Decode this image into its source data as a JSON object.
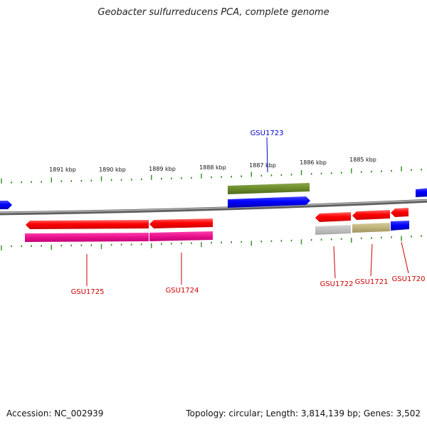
{
  "title": "Geobacter sulfurreducens PCA, complete genome",
  "footer": {
    "accession": "Accession: NC_002939",
    "summary": "Topology: circular; Length: 3,814,139 bp; Genes: 3,502"
  },
  "ruler": {
    "labels": [
      "1891 kbp",
      "1890 kbp",
      "1889 kbp",
      "1888 kbp",
      "1887 kbp",
      "1886 kbp",
      "1885 kbp"
    ],
    "tick_color": "#2e8b1e"
  },
  "colors": {
    "backbone": "#8a8a8a",
    "label_red": "#cc0000",
    "label_blue": "#0000cc"
  },
  "genes": [
    {
      "name": "GSU1723",
      "label_color": "blue"
    },
    {
      "name": "GSU1725",
      "label_color": "red"
    },
    {
      "name": "GSU1724",
      "label_color": "red"
    },
    {
      "name": "GSU1722",
      "label_color": "red"
    },
    {
      "name": "GSU1721",
      "label_color": "red"
    },
    {
      "name": "GSU1720",
      "label_color": "red"
    }
  ]
}
